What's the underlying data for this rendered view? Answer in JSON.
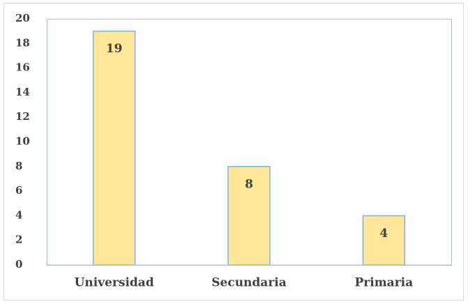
{
  "chart_data": {
    "type": "bar",
    "categories": [
      "Universidad",
      "Secundaria",
      "Primaria"
    ],
    "values": [
      19,
      8,
      4
    ],
    "color": "#FFE699",
    "edge_color": "#7FB0DE",
    "ylim": [
      0,
      20
    ],
    "yticks": [
      0,
      2,
      4,
      6,
      8,
      10,
      12,
      14,
      16,
      18,
      20
    ],
    "grid": false
  }
}
